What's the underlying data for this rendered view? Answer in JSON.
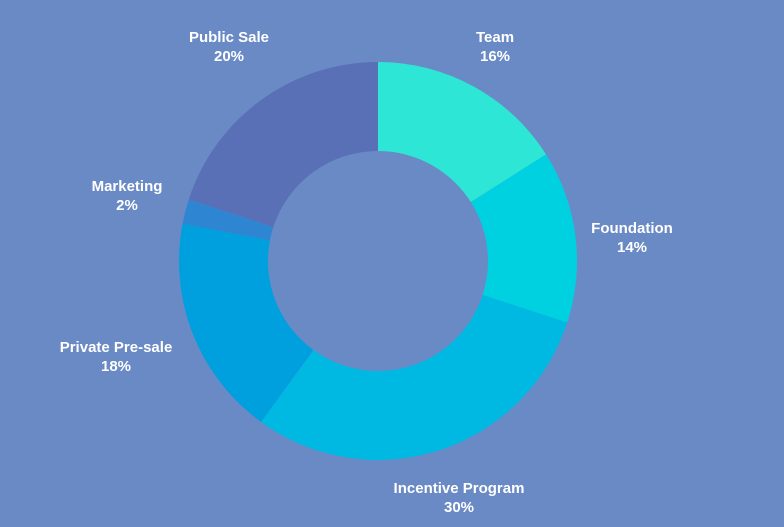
{
  "chart_data": {
    "type": "pie",
    "variant": "donut",
    "title": "",
    "slices": [
      {
        "name": "Team",
        "value": 16,
        "label": "16%",
        "color": "#2ee6d6"
      },
      {
        "name": "Foundation",
        "value": 14,
        "label": "14%",
        "color": "#00d1e0"
      },
      {
        "name": "Incentive Program",
        "value": 30,
        "label": "30%",
        "color": "#00b9e3"
      },
      {
        "name": "Private Pre-sale",
        "value": 18,
        "label": "18%",
        "color": "#009fdd"
      },
      {
        "name": "Marketing",
        "value": 2,
        "label": "2%",
        "color": "#2e86d3"
      },
      {
        "name": "Public Sale",
        "value": 20,
        "label": "20%",
        "color": "#5a70b6"
      }
    ]
  },
  "colors": {
    "background": "#6a8ac6",
    "label_text": "#ffffff"
  }
}
